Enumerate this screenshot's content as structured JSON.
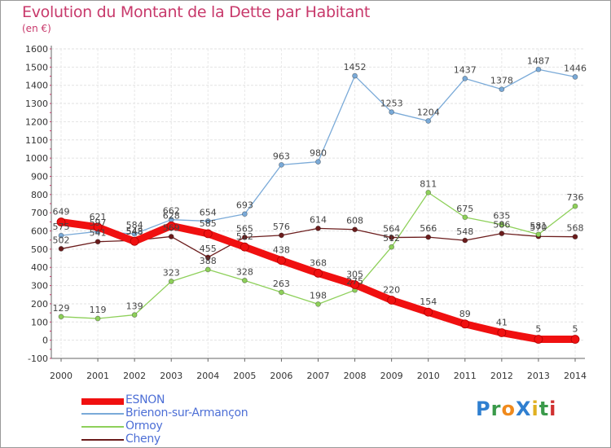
{
  "title": "Evolution du Montant de la Dette par Habitant",
  "unit_label": "(en €)",
  "logo": {
    "text": "ProXiti",
    "letters": [
      {
        "ch": "P",
        "color": "#2f7fd0"
      },
      {
        "ch": "r",
        "color": "#3a9a4a"
      },
      {
        "ch": "o",
        "color": "#f08a1c"
      },
      {
        "ch": "X",
        "color": "#2f7fd0"
      },
      {
        "ch": "i",
        "color": "#e0b020"
      },
      {
        "ch": "t",
        "color": "#3a9a4a"
      },
      {
        "ch": "i",
        "color": "#d03030"
      }
    ]
  },
  "chart_data": {
    "type": "line",
    "title": "Evolution du Montant de la Dette par Habitant",
    "ylabel": "(en €)",
    "xlabel": "",
    "ylim": [
      -100,
      1600
    ],
    "y_ticks": [
      "1600",
      "1500",
      "1400",
      "1300",
      "1200",
      "1100",
      "1000",
      "900",
      "800",
      "700",
      "600",
      "500",
      "400",
      "300",
      "200",
      "100",
      "0",
      "-100"
    ],
    "categories": [
      "2000",
      "2001",
      "2002",
      "2003",
      "2004",
      "2005",
      "2006",
      "2007",
      "2008",
      "2009",
      "2010",
      "2011",
      "2012",
      "2013",
      "2014"
    ],
    "grid": true,
    "legend_position": "bottom-left",
    "series": [
      {
        "name": "Cheny",
        "color": "#6b1c1c",
        "values": [
          502,
          541,
          548,
          569,
          455,
          565,
          576,
          614,
          608,
          564,
          566,
          548,
          586,
          570,
          568
        ],
        "labels": [
          "502",
          "541",
          "548",
          "569",
          "455",
          "565",
          "576",
          "614",
          "608",
          "564",
          "566",
          "548",
          "586",
          "570",
          "568"
        ]
      },
      {
        "name": "Ormoy",
        "color": "#8ed05a",
        "values": [
          129,
          119,
          139,
          323,
          388,
          328,
          263,
          198,
          275,
          512,
          811,
          675,
          635,
          581,
          736
        ],
        "labels": [
          "129",
          "119",
          "139",
          "323",
          "388",
          "328",
          "263",
          "198",
          "275",
          "512",
          "811",
          "675",
          "635",
          "581",
          "736"
        ]
      },
      {
        "name": "Brienon-sur-Armançon",
        "color": "#7aaad8",
        "values": [
          575,
          597,
          584,
          662,
          654,
          693,
          963,
          980,
          1452,
          1253,
          1204,
          1437,
          1378,
          1487,
          1446
        ],
        "labels": [
          "575",
          "597",
          "584",
          "662",
          "654",
          "693",
          "963",
          "980",
          "1452",
          "1253",
          "1204",
          "1437",
          "1378",
          "1487",
          "1446"
        ]
      },
      {
        "name": "ESNON",
        "color": "#f01010",
        "values": [
          649,
          621,
          543,
          628,
          585,
          512,
          438,
          368,
          305,
          220,
          154,
          89,
          41,
          5,
          5
        ],
        "labels": [
          "649",
          "621",
          "543",
          "628",
          "585",
          "512",
          "438",
          "368",
          "305",
          "220",
          "154",
          "89",
          "41",
          "5",
          "5"
        ]
      }
    ]
  },
  "legend": [
    {
      "name": "ESNON",
      "color": "#f01010"
    },
    {
      "name": "Brienon-sur-Armançon",
      "color": "#7aaad8"
    },
    {
      "name": "Ormoy",
      "color": "#8ed05a"
    },
    {
      "name": "Cheny",
      "color": "#6b1c1c"
    }
  ]
}
